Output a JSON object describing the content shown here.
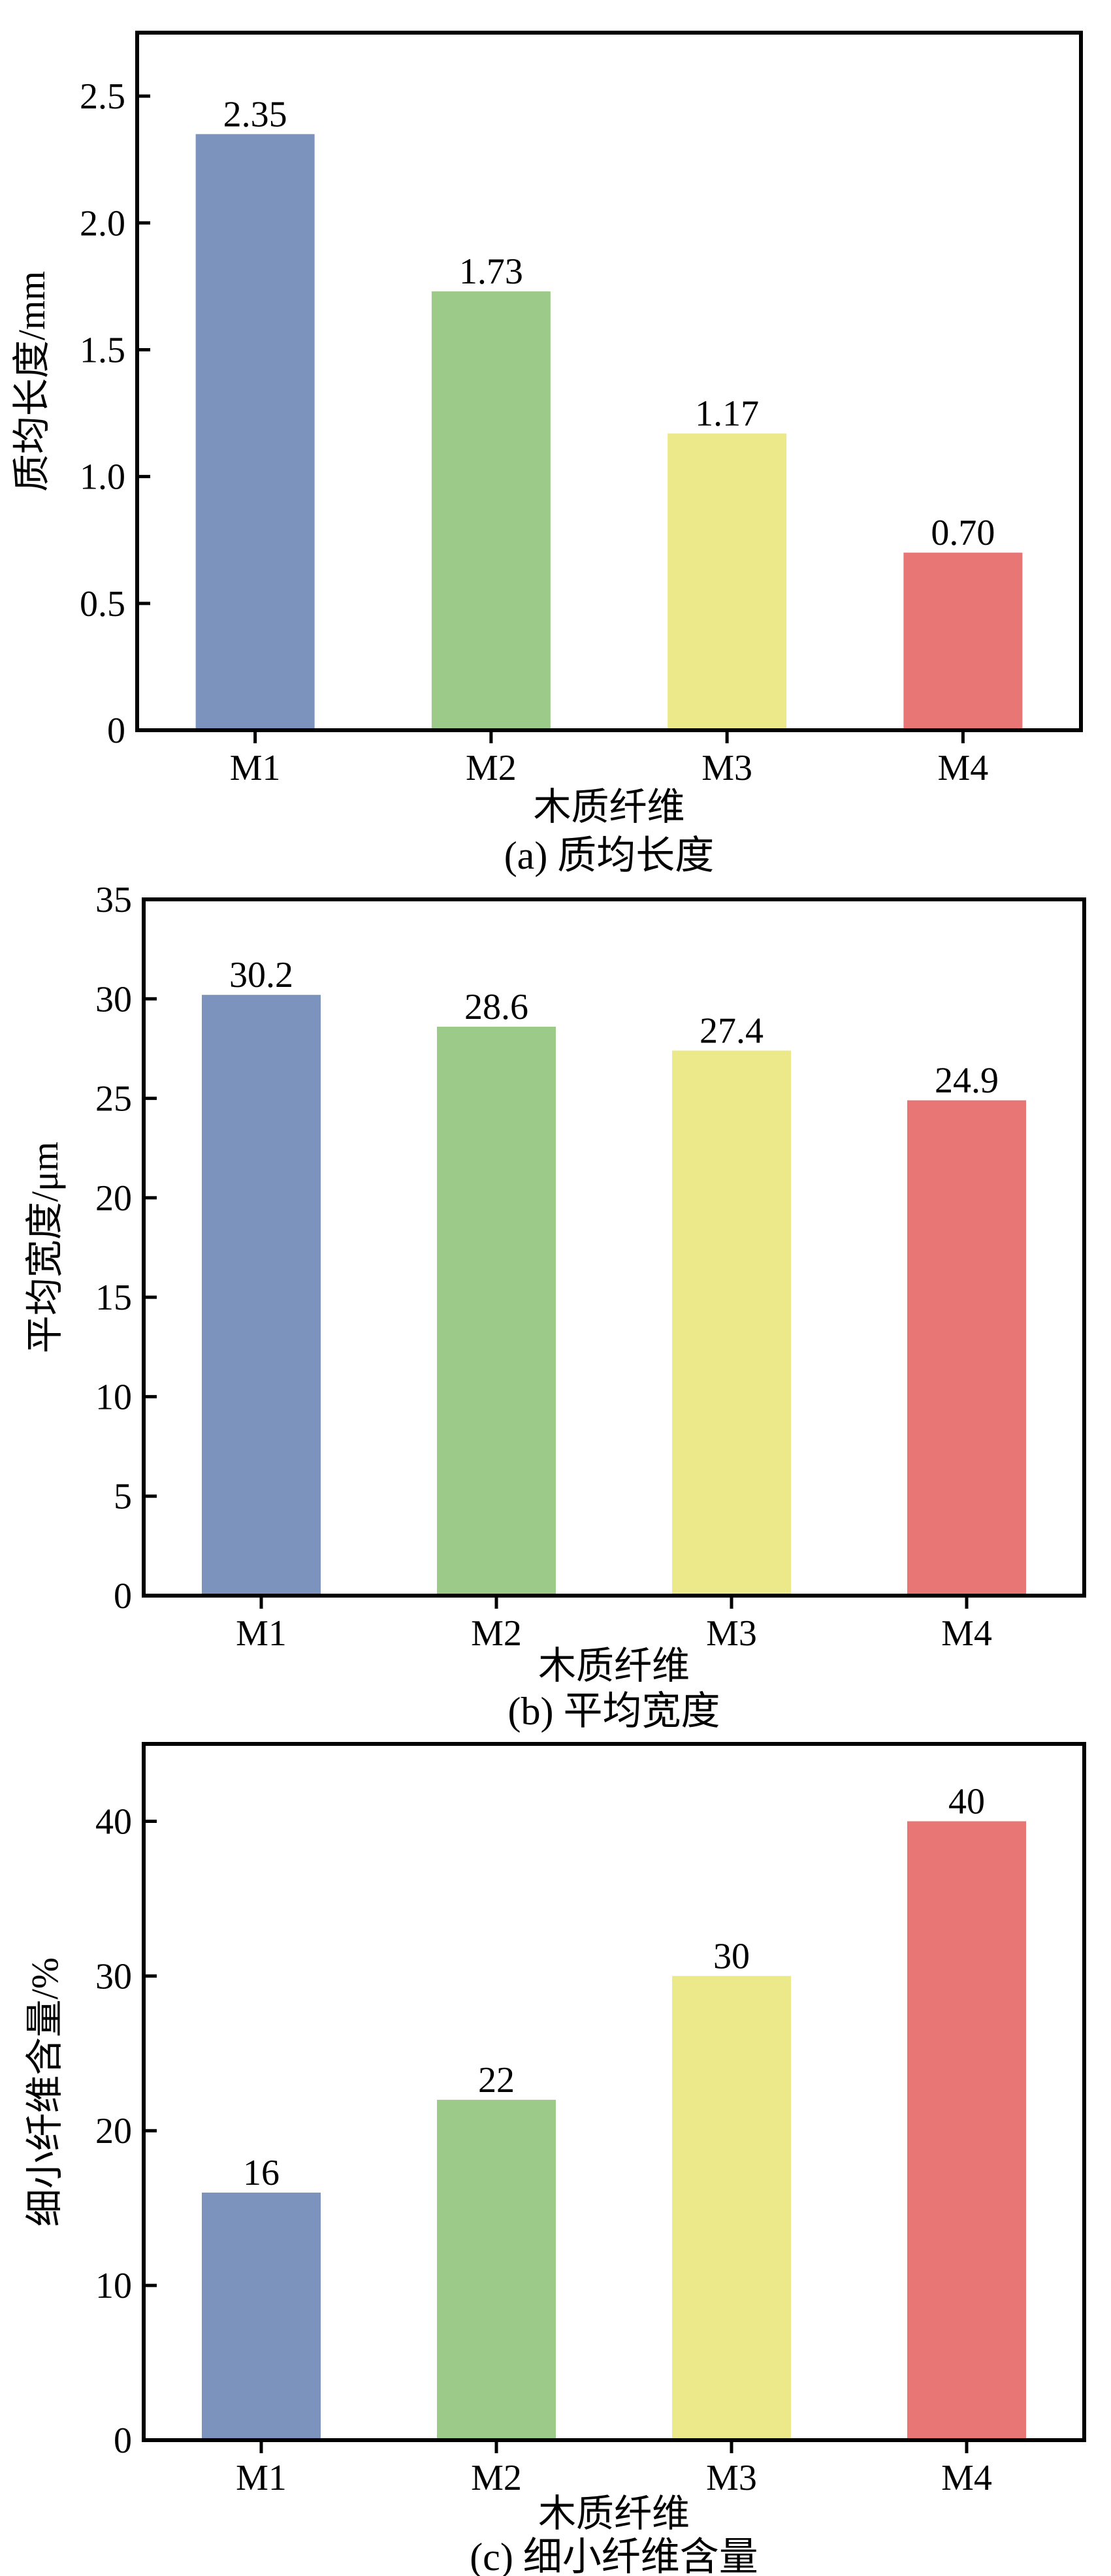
{
  "colors": {
    "M1": "#7b93bd",
    "M2": "#9cca88",
    "M3": "#ebe98a",
    "M4": "#e87674",
    "axis": "#000000"
  },
  "chart_data": [
    {
      "type": "bar",
      "caption": "(a) 质均长度",
      "xlabel": "木质纤维",
      "ylabel": "质均长度/mm",
      "categories": [
        "M1",
        "M2",
        "M3",
        "M4"
      ],
      "values": [
        2.35,
        1.73,
        1.17,
        0.7
      ],
      "value_labels": [
        "2.35",
        "1.73",
        "1.17",
        "0.70"
      ],
      "ylim": [
        0,
        2.75
      ],
      "yticks": [
        0,
        0.5,
        1.0,
        1.5,
        2.0,
        2.5
      ],
      "ytick_labels": [
        "0",
        "0.5",
        "1.0",
        "1.5",
        "2.0",
        "2.5"
      ],
      "grid": false,
      "legend": "none"
    },
    {
      "type": "bar",
      "caption": "(b) 平均宽度",
      "xlabel": "木质纤维",
      "ylabel": "平均宽度/μm",
      "categories": [
        "M1",
        "M2",
        "M3",
        "M4"
      ],
      "values": [
        30.2,
        28.6,
        27.4,
        24.9
      ],
      "value_labels": [
        "30.2",
        "28.6",
        "27.4",
        "24.9"
      ],
      "ylim": [
        0,
        35
      ],
      "yticks": [
        0,
        5,
        10,
        15,
        20,
        25,
        30,
        35
      ],
      "ytick_labels": [
        "0",
        "5",
        "10",
        "15",
        "20",
        "25",
        "30",
        "35"
      ],
      "grid": false,
      "legend": "none"
    },
    {
      "type": "bar",
      "caption": "(c) 细小纤维含量",
      "xlabel": "木质纤维",
      "ylabel": "细小纤维含量/%",
      "categories": [
        "M1",
        "M2",
        "M3",
        "M4"
      ],
      "values": [
        16,
        22,
        30,
        40
      ],
      "value_labels": [
        "16",
        "22",
        "30",
        "40"
      ],
      "ylim": [
        0,
        45
      ],
      "yticks": [
        0,
        10,
        20,
        30,
        40
      ],
      "ytick_labels": [
        "0",
        "10",
        "20",
        "30",
        "40"
      ],
      "grid": false,
      "legend": "none"
    }
  ]
}
